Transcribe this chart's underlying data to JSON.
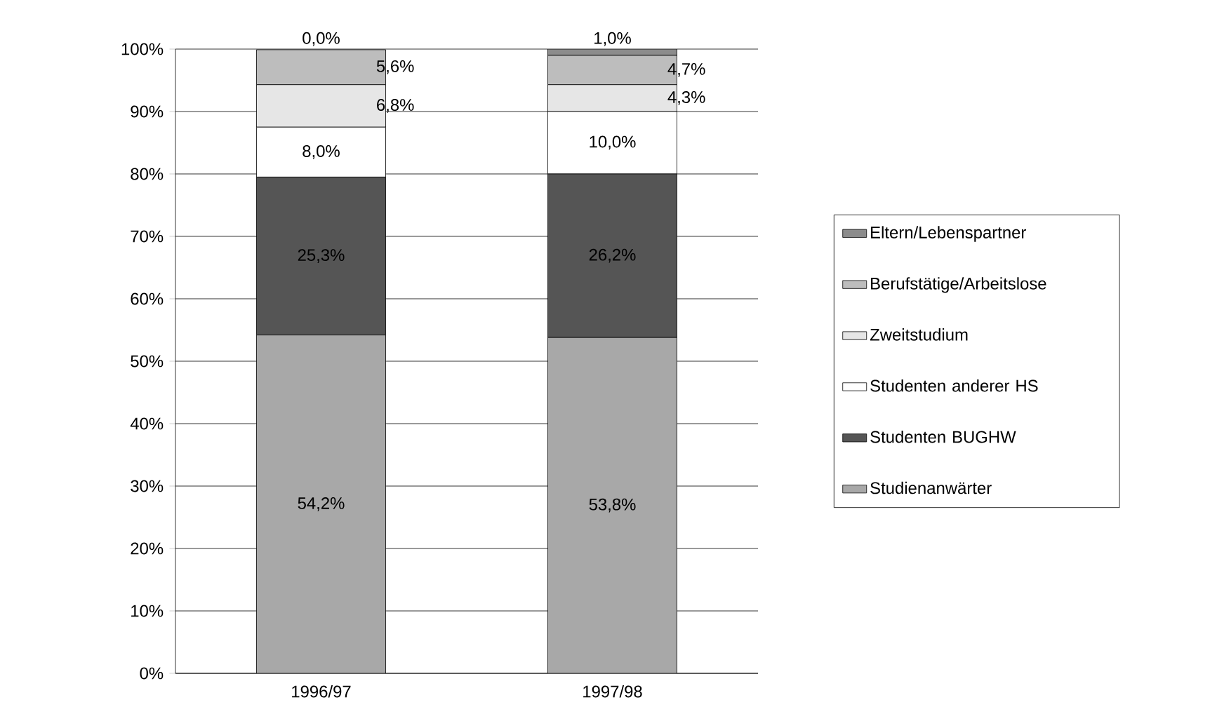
{
  "chart_data": {
    "type": "bar",
    "stacked": true,
    "categories": [
      "1996/97",
      "1997/98"
    ],
    "series": [
      {
        "name": "Studienanwärter",
        "color": "#a8a8a8",
        "values": [
          54.2,
          53.8
        ],
        "value_labels": [
          "54,2%",
          "53,8%"
        ]
      },
      {
        "name": "Studenten BUGHW",
        "color": "#555555",
        "values": [
          25.3,
          26.2
        ],
        "value_labels": [
          "25,3%",
          "26,2%"
        ]
      },
      {
        "name": "Studenten anderer HS",
        "color": "#ffffff",
        "values": [
          8.0,
          10.0
        ],
        "value_labels": [
          "8,0%",
          "10,0%"
        ]
      },
      {
        "name": "Zweitstudium",
        "color": "#e6e6e6",
        "values": [
          6.8,
          4.3
        ],
        "value_labels": [
          "6,8%",
          "4,3%"
        ]
      },
      {
        "name": "Berufstätige/Arbeitslose",
        "color": "#bdbdbd",
        "values": [
          5.6,
          4.7
        ],
        "value_labels": [
          "5,6%",
          "4,7%"
        ]
      },
      {
        "name": "Eltern/Lebenspartner",
        "color": "#8c8c8c",
        "values": [
          0.0,
          1.0
        ],
        "value_labels": [
          "0,0%",
          "1,0%"
        ]
      }
    ],
    "ylim": [
      0,
      100
    ],
    "yticks": [
      {
        "value": 0,
        "label": "0%"
      },
      {
        "value": 10,
        "label": "10%"
      },
      {
        "value": 20,
        "label": "20%"
      },
      {
        "value": 30,
        "label": "30%"
      },
      {
        "value": 40,
        "label": "40%"
      },
      {
        "value": 50,
        "label": "50%"
      },
      {
        "value": 60,
        "label": "60%"
      },
      {
        "value": 70,
        "label": "70%"
      },
      {
        "value": 80,
        "label": "80%"
      },
      {
        "value": 90,
        "label": "90%"
      },
      {
        "value": 100,
        "label": "100%"
      }
    ],
    "grid": "y",
    "legend": "right"
  }
}
